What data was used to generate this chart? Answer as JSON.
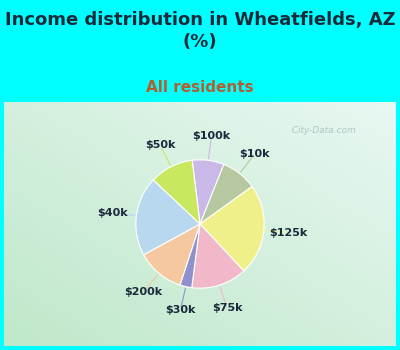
{
  "title": "Income distribution in Wheatfields, AZ\n(%)",
  "subtitle": "All residents",
  "background_color": "#00FFFF",
  "labels": [
    "$100k",
    "$10k",
    "$125k",
    "$75k",
    "$30k",
    "$200k",
    "$40k",
    "$50k"
  ],
  "sizes": [
    8,
    9,
    23,
    14,
    3,
    12,
    20,
    11
  ],
  "colors": [
    "#c9b8e8",
    "#b5c8a0",
    "#f0f08a",
    "#f0b8c8",
    "#9090cc",
    "#f5c8a0",
    "#b8d8f0",
    "#c8e860"
  ],
  "startangle": 97,
  "title_fontsize": 13,
  "title_color": "#1a2a3a",
  "subtitle_fontsize": 11,
  "subtitle_color": "#b06030",
  "label_fontsize": 8,
  "watermark": "  City-Data.com",
  "panel_colors": [
    "#cdeee0",
    "#e8f8f0"
  ],
  "wedge_linewidth": 0.8,
  "wedge_edgecolor": "#ffffff"
}
